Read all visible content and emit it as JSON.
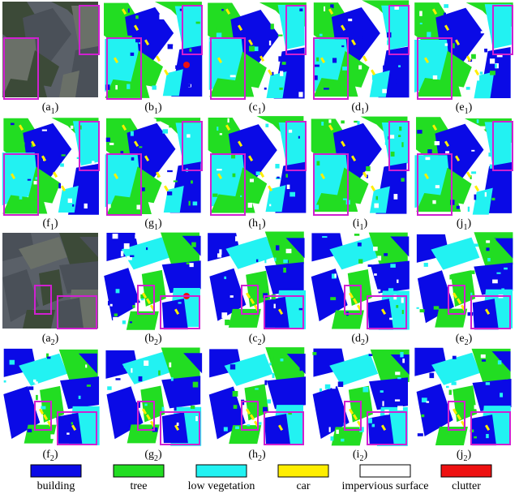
{
  "figure": {
    "panels": [
      [
        "(a",
        "1",
        ")"
      ],
      [
        "(b",
        "1",
        ")"
      ],
      [
        "(c",
        "1",
        ")"
      ],
      [
        "(d",
        "1",
        ")"
      ],
      [
        "(e",
        "1",
        ")"
      ],
      [
        "(f",
        "1",
        ")"
      ],
      [
        "(g",
        "1",
        ")"
      ],
      [
        "(h",
        "1",
        ")"
      ],
      [
        "(i",
        "1",
        ")"
      ],
      [
        "(j",
        "1",
        ")"
      ],
      [
        "(a",
        "2",
        ")"
      ],
      [
        "(b",
        "2",
        ")"
      ],
      [
        "(c",
        "2",
        ")"
      ],
      [
        "(d",
        "2",
        ")"
      ],
      [
        "(e",
        "2",
        ")"
      ],
      [
        "(f",
        "2",
        ")"
      ],
      [
        "(g",
        "2",
        ")"
      ],
      [
        "(h",
        "2",
        ")"
      ],
      [
        "(i",
        "2",
        ")"
      ],
      [
        "(j",
        "2",
        ")"
      ]
    ],
    "legend": [
      {
        "label": "building",
        "color": "#0a0ae6"
      },
      {
        "label": "tree",
        "color": "#22dd22"
      },
      {
        "label": "low vegetation",
        "color": "#22f2f2"
      },
      {
        "label": "car",
        "color": "#ffee00"
      },
      {
        "label": "impervious surface",
        "color": "#ffffff"
      },
      {
        "label": "clutter",
        "color": "#ee1111"
      }
    ]
  }
}
